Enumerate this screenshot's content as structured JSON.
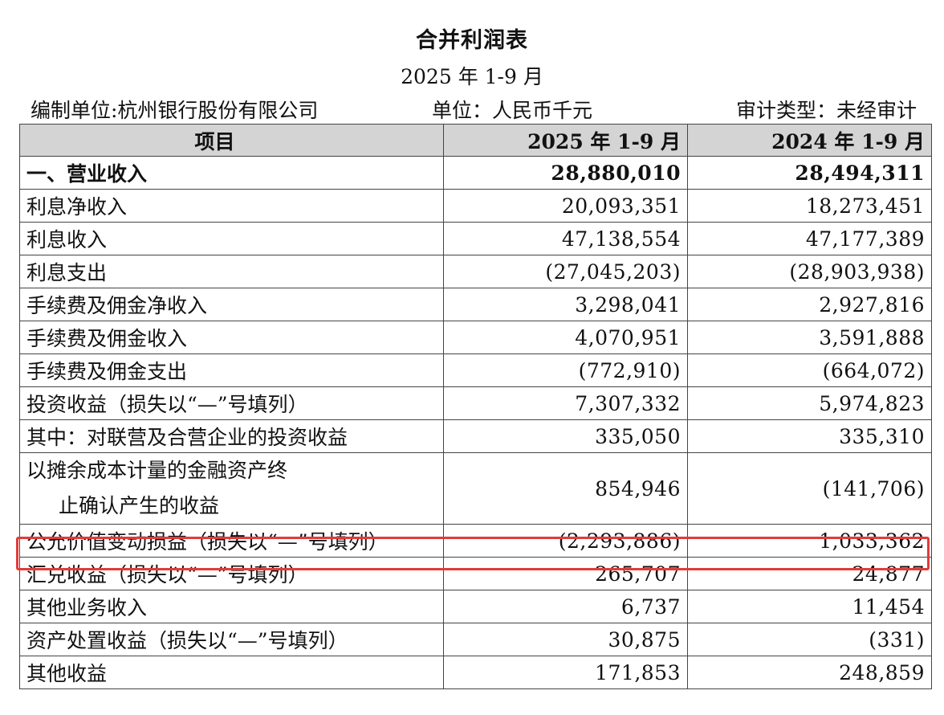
{
  "document": {
    "title": "合并利润表",
    "period": "2025 年 1-9 月",
    "preparer": "编制单位:杭州银行股份有限公司",
    "unit": "单位：人民币千元",
    "audit_type": "审计类型：未经审计"
  },
  "table": {
    "headers": [
      "项目",
      "2025 年 1-9 月",
      "2024 年 1-9 月"
    ],
    "rows": [
      {
        "label": "一、营业收入",
        "v2025": "28,880,010",
        "v2024": "28,494,311"
      },
      {
        "label": "利息净收入",
        "v2025": "20,093,351",
        "v2024": "18,273,451"
      },
      {
        "label": "利息收入",
        "v2025": "47,138,554",
        "v2024": "47,177,389"
      },
      {
        "label": "利息支出",
        "v2025": "(27,045,203)",
        "v2024": "(28,903,938)"
      },
      {
        "label": "手续费及佣金净收入",
        "v2025": "3,298,041",
        "v2024": "2,927,816"
      },
      {
        "label": "手续费及佣金收入",
        "v2025": "4,070,951",
        "v2024": "3,591,888"
      },
      {
        "label": "手续费及佣金支出",
        "v2025": "(772,910)",
        "v2024": "(664,072)"
      },
      {
        "label": "投资收益（损失以“—”号填列）",
        "v2025": "7,307,332",
        "v2024": "5,974,823"
      },
      {
        "label": "其中：对联营及合营企业的投资收益",
        "v2025": "335,050",
        "v2024": "335,310"
      },
      {
        "label_line1": "以摊余成本计量的金融资产终",
        "label_line2": "止确认产生的收益",
        "v2025": "854,946",
        "v2024": "(141,706)"
      },
      {
        "label": "公允价值变动损益（损失以“—”号填列）",
        "v2025": "(2,293,886)",
        "v2024": "1,033,362"
      },
      {
        "label": "汇兑收益（损失以“—”号填列）",
        "v2025": "265,707",
        "v2024": "24,877"
      },
      {
        "label": "其他业务收入",
        "v2025": "6,737",
        "v2024": "11,454"
      },
      {
        "label": "资产处置收益（损失以“—”号填列）",
        "v2025": "30,875",
        "v2024": "(331)"
      },
      {
        "label": "其他收益",
        "v2025": "171,853",
        "v2024": "248,859"
      }
    ]
  },
  "highlight": {
    "row_index": 10,
    "color": "#e23b3b"
  }
}
